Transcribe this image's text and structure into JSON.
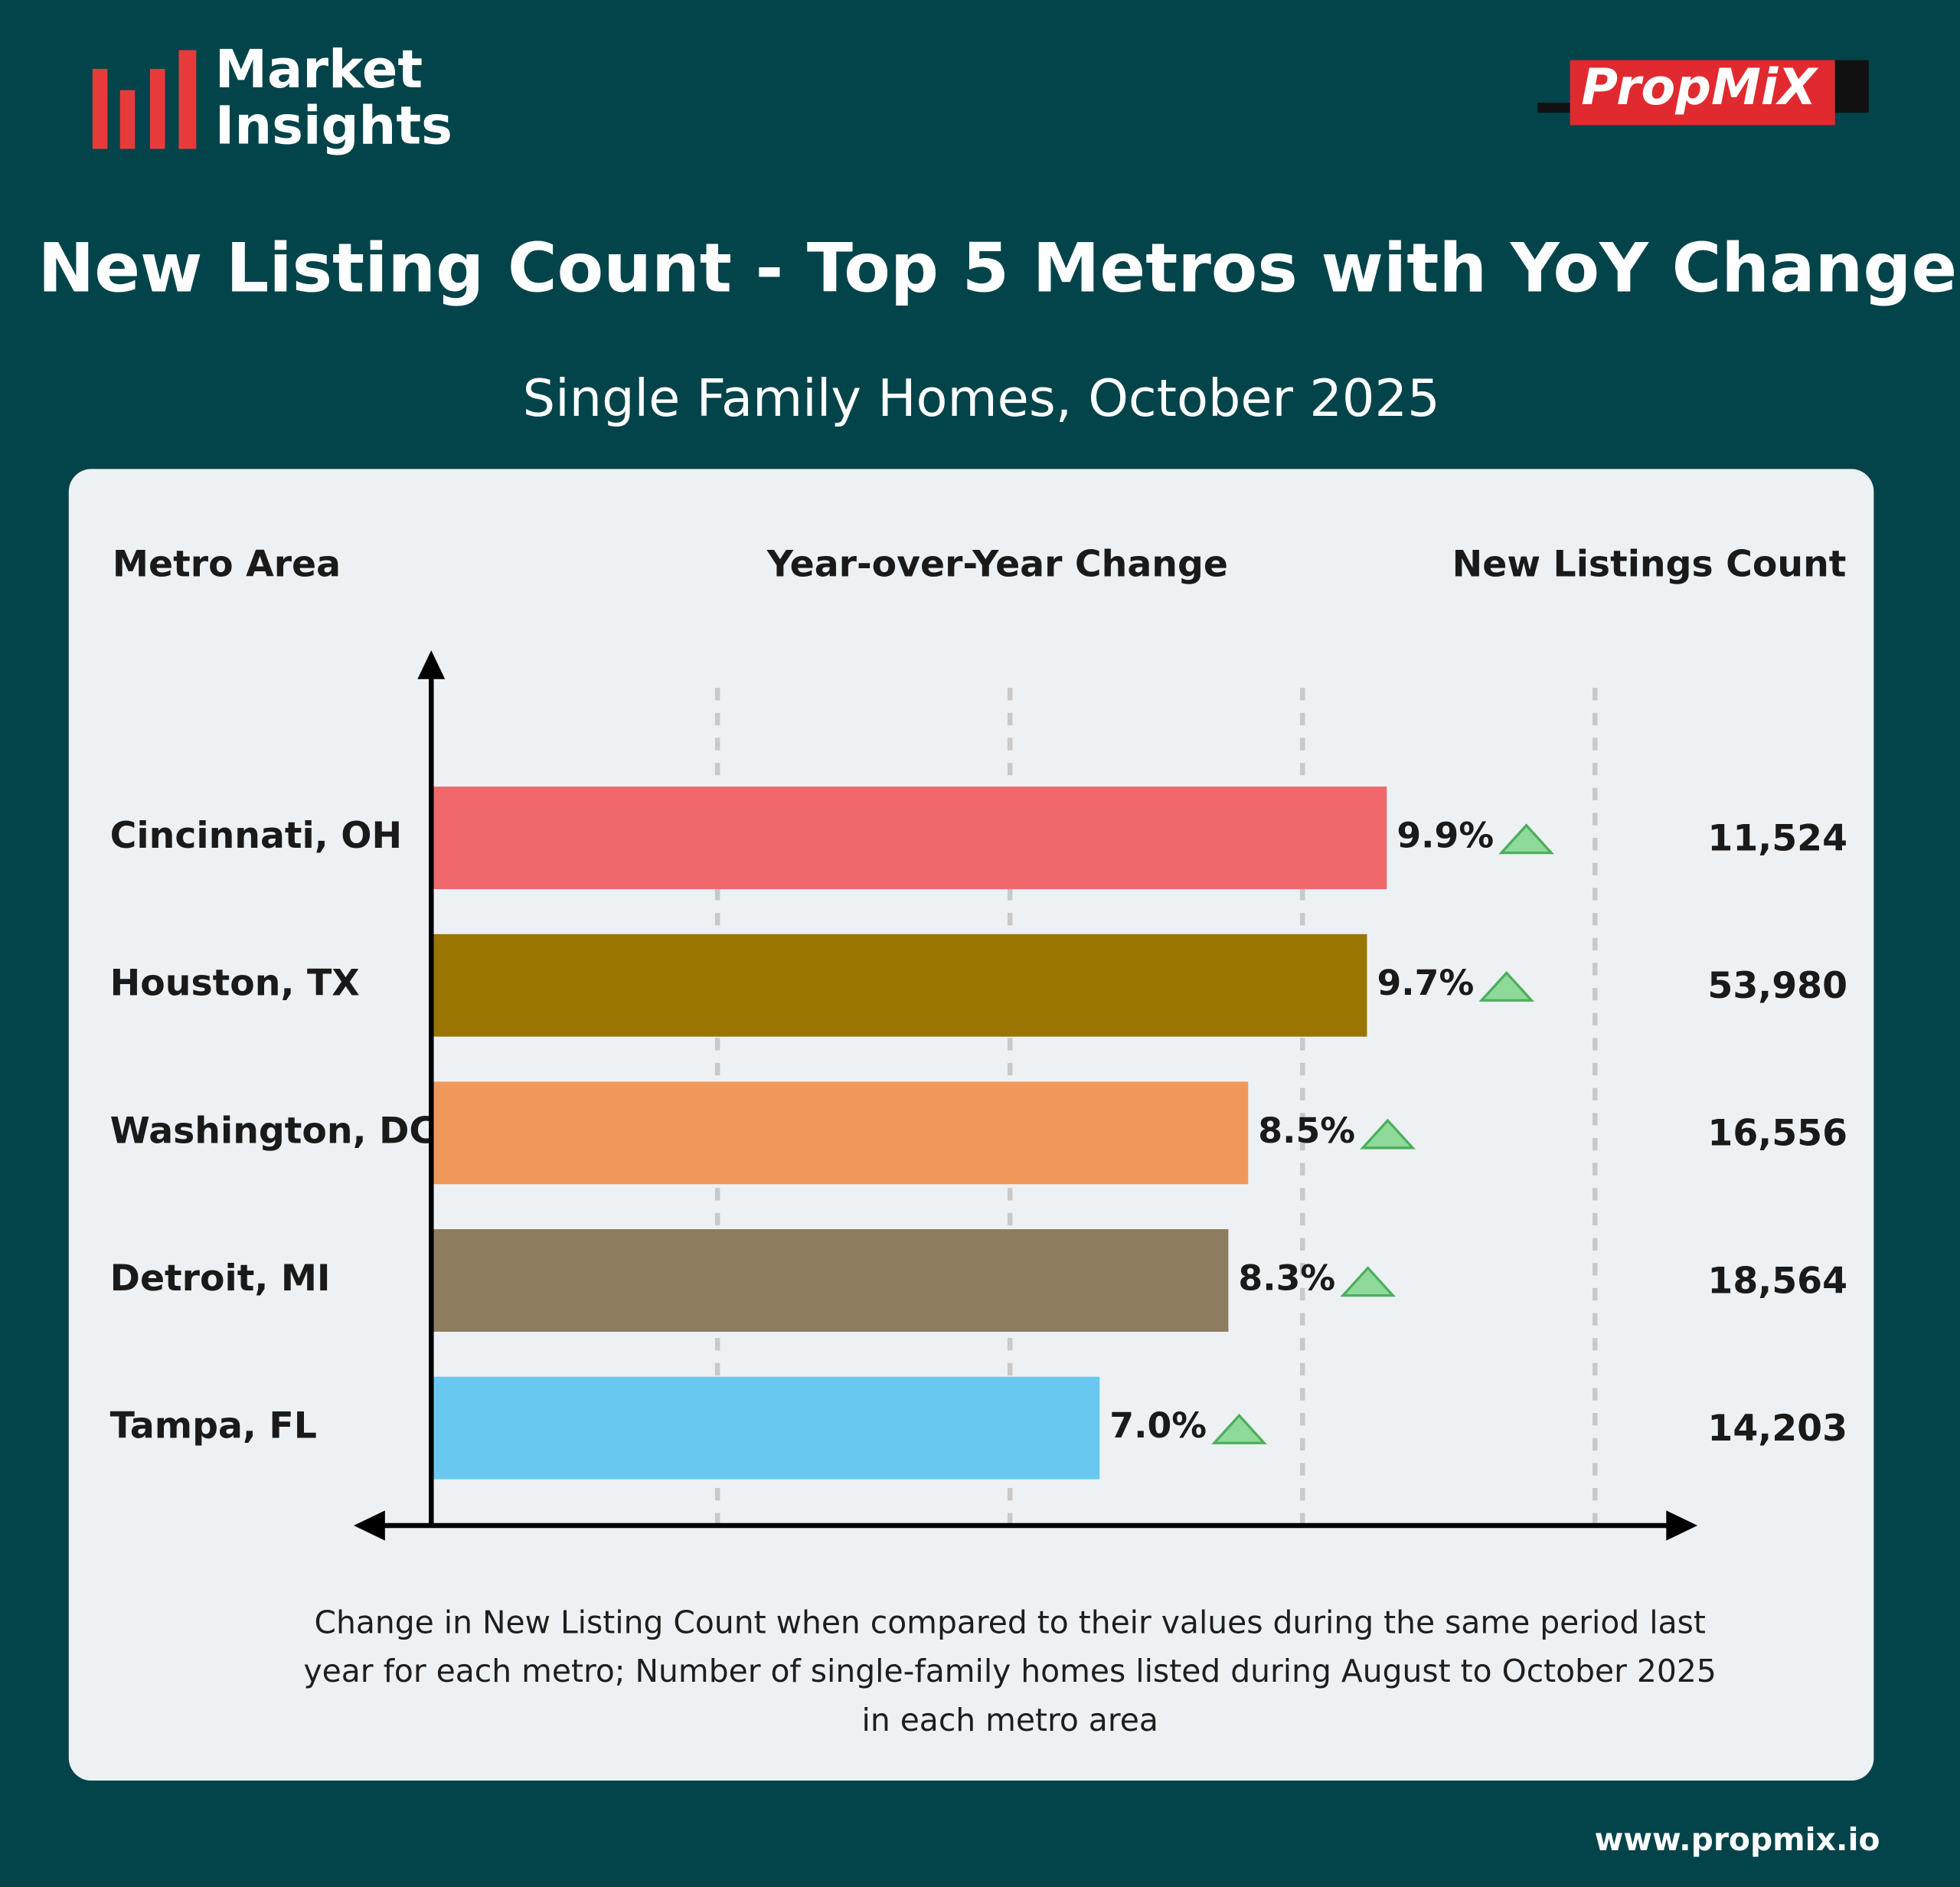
{
  "brand": {
    "line1": "Market",
    "line2": "Insights",
    "logo": "PropMiX",
    "url": "www.propmix.io"
  },
  "chart_data": {
    "type": "bar",
    "orientation": "horizontal",
    "title": "New Listing Count - Top 5 Metros with YoY Change",
    "subtitle": "Single Family Homes, October 2025",
    "column_headers": [
      "Metro Area",
      "Year-over-Year Change",
      "New Listings Count"
    ],
    "categories": [
      "Cincinnati, OH",
      "Houston, TX",
      "Washington, DC",
      "Detroit, MI",
      "Tampa, FL"
    ],
    "values": [
      9.9,
      9.7,
      8.5,
      8.3,
      7.0
    ],
    "value_labels": [
      "9.9%",
      "9.7%",
      "8.5%",
      "8.3%",
      "7.0%"
    ],
    "colors": [
      "#f0686b",
      "#9a7400",
      "#f0985a",
      "#8e7c5e",
      "#69c8f0"
    ],
    "counts": [
      "11,524",
      "53,980",
      "16,556",
      "18,564",
      "14,203"
    ],
    "xlim": [
      0.25,
      13
    ],
    "note": "Change in New Listing Count when compared to their values during the same period last year for each metro; Number of single-family homes listed during August to October 2025 in each metro area"
  }
}
